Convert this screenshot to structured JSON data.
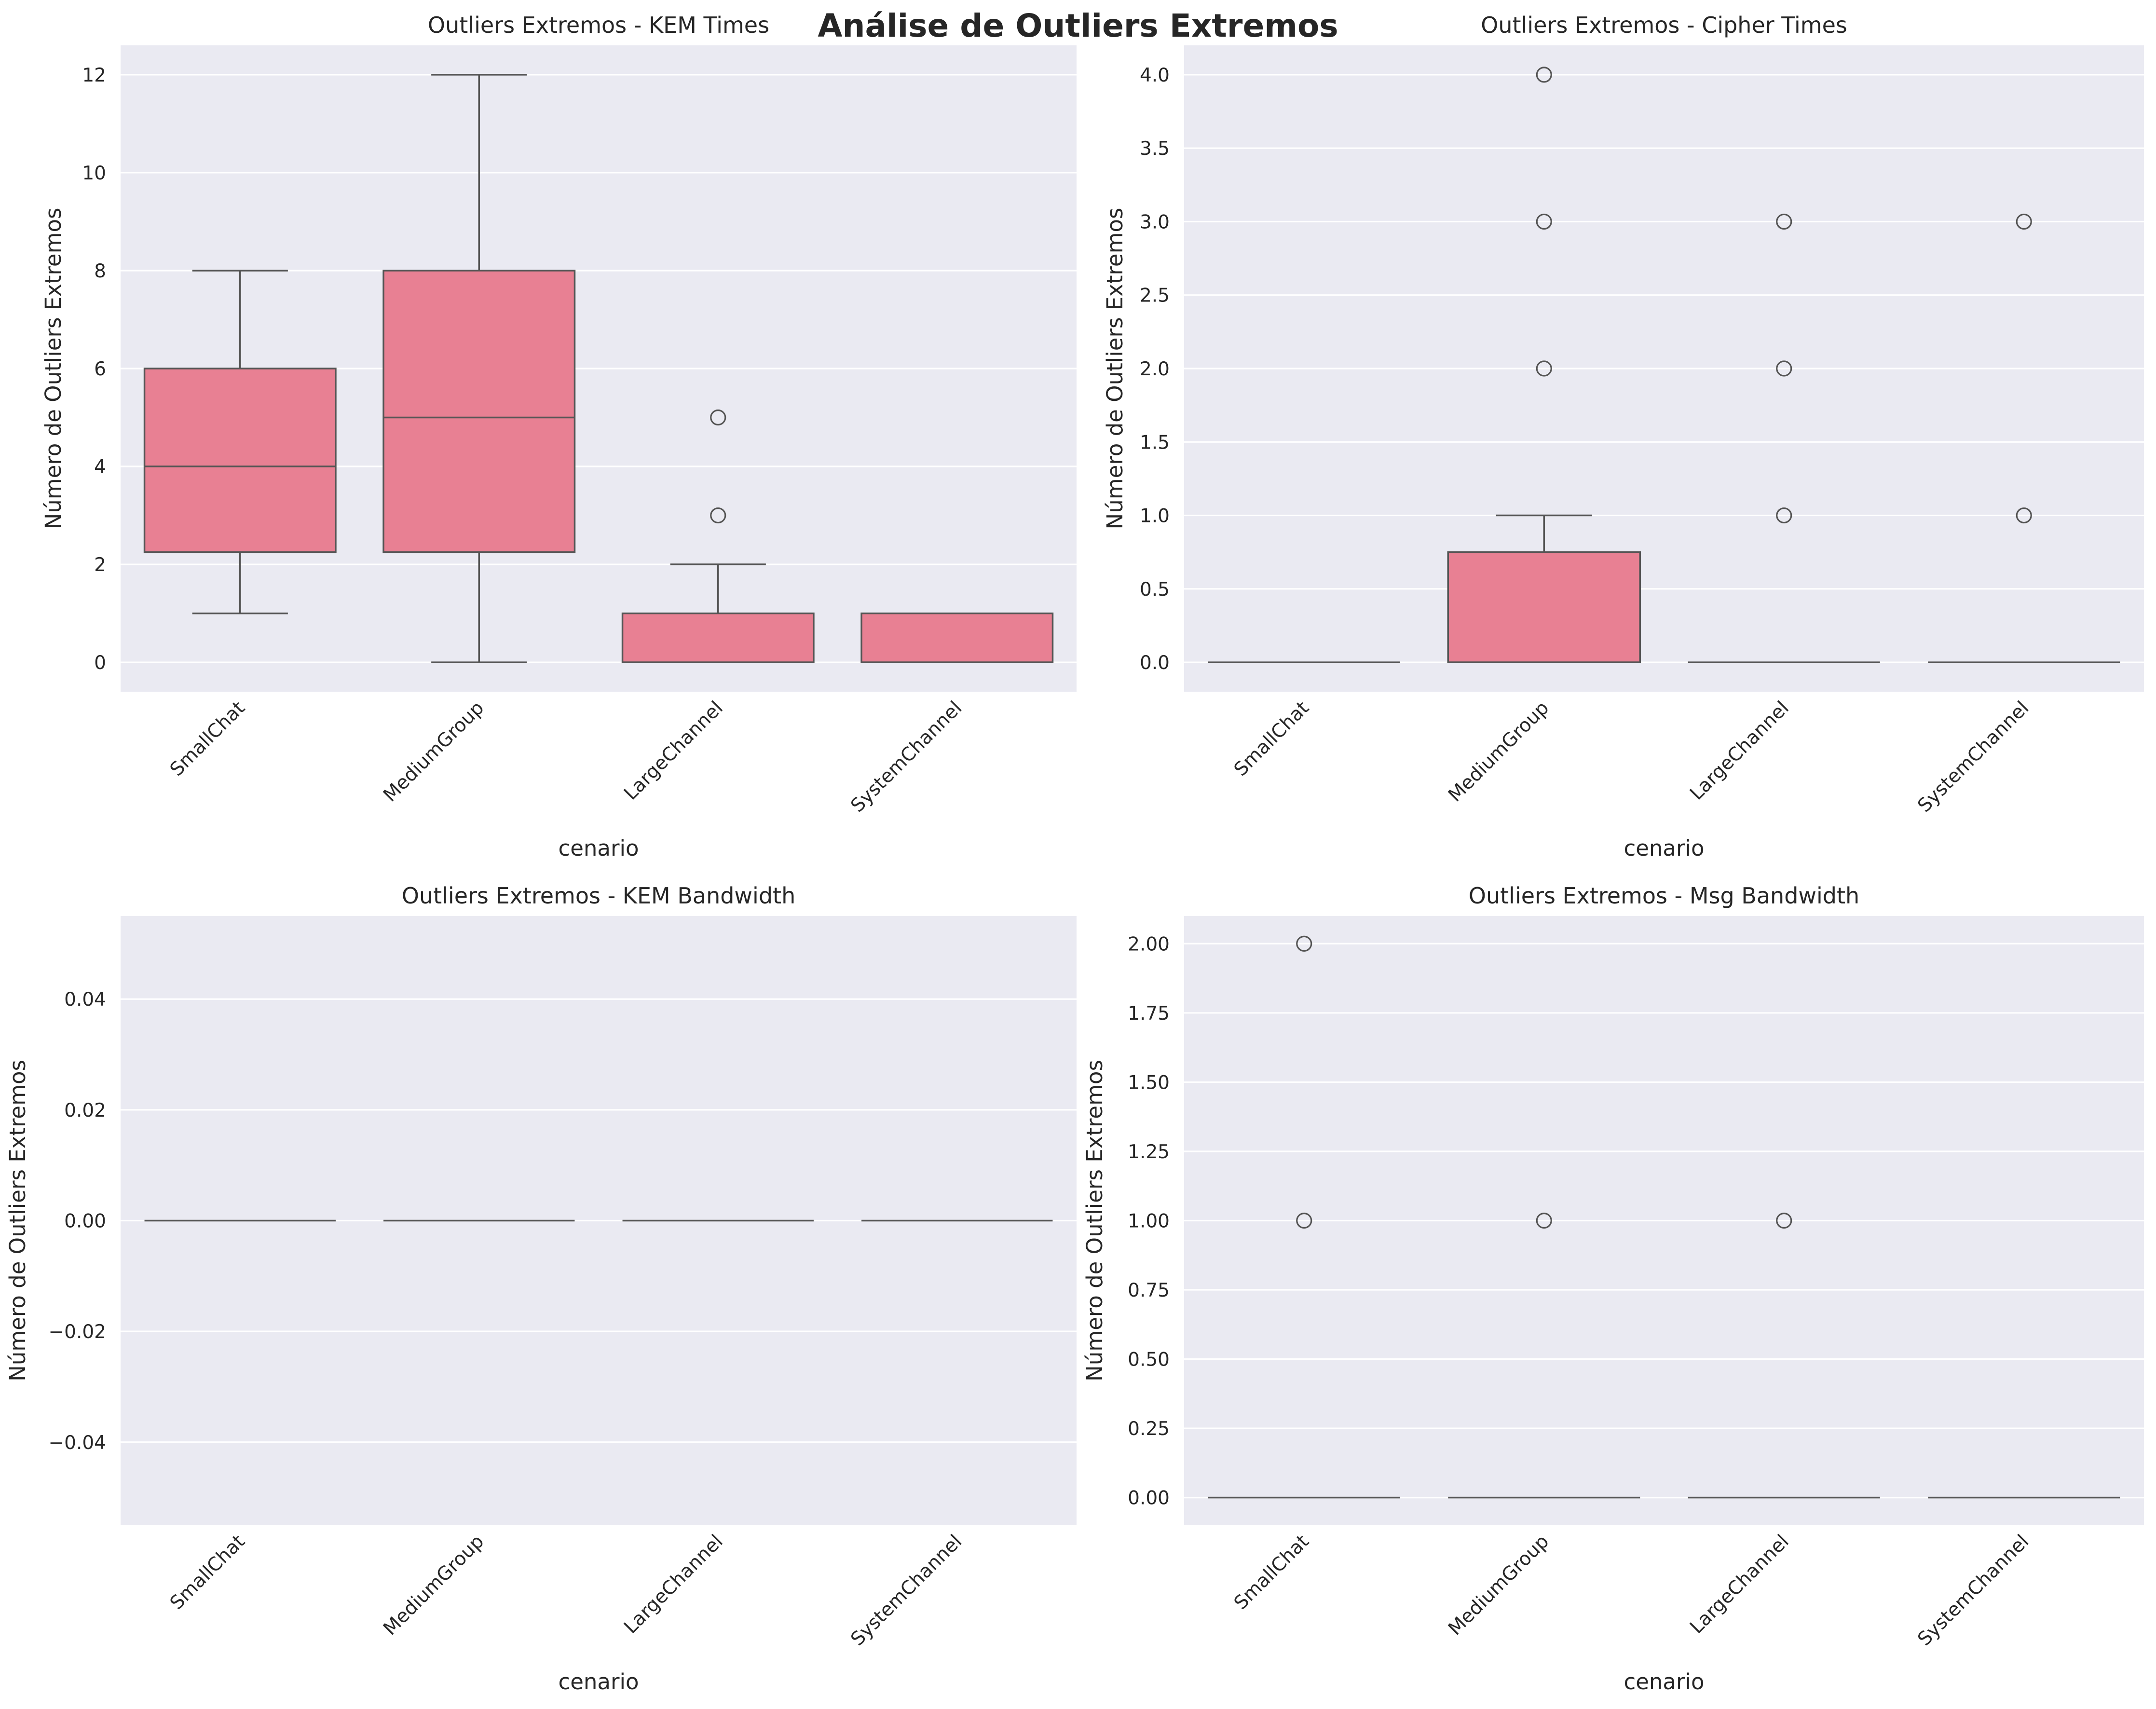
{
  "figure_title": "Análise de Outliers Extremos",
  "colors": {
    "box_fill": "#E88093",
    "box_edge": "#555555",
    "axes_bg": "#EAEAF2",
    "grid": "#FFFFFF",
    "flier_edge": "#555555"
  },
  "chart_data": [
    {
      "type": "box",
      "title": "Outliers Extremos - KEM Times",
      "xlabel": "cenario",
      "ylabel": "Número de Outliers Extremos",
      "categories": [
        "SmallChat",
        "MediumGroup",
        "LargeChannel",
        "SystemChannel"
      ],
      "ylim": [
        -0.6,
        12.6
      ],
      "yticks": [
        0,
        2,
        4,
        6,
        8,
        10,
        12
      ],
      "ytick_labels": [
        "0",
        "2",
        "4",
        "6",
        "8",
        "10",
        "12"
      ],
      "grid": true,
      "boxes": [
        {
          "category": "SmallChat",
          "whislo": 1,
          "q1": 2.25,
          "med": 4,
          "q3": 6,
          "whishi": 8,
          "fliers": []
        },
        {
          "category": "MediumGroup",
          "whislo": 0,
          "q1": 2.25,
          "med": 5,
          "q3": 8,
          "whishi": 12,
          "fliers": []
        },
        {
          "category": "LargeChannel",
          "whislo": 0,
          "q1": 0,
          "med": 0,
          "q3": 1,
          "whishi": 2,
          "fliers": [
            3,
            5
          ]
        },
        {
          "category": "SystemChannel",
          "whislo": 0,
          "q1": 0,
          "med": 0,
          "q3": 1,
          "whishi": 1,
          "fliers": []
        }
      ]
    },
    {
      "type": "box",
      "title": "Outliers Extremos - Cipher Times",
      "xlabel": "cenario",
      "ylabel": "Número de Outliers Extremos",
      "categories": [
        "SmallChat",
        "MediumGroup",
        "LargeChannel",
        "SystemChannel"
      ],
      "ylim": [
        -0.2,
        4.2
      ],
      "yticks": [
        0,
        0.5,
        1,
        1.5,
        2,
        2.5,
        3,
        3.5,
        4
      ],
      "ytick_labels": [
        "0.0",
        "0.5",
        "1.0",
        "1.5",
        "2.0",
        "2.5",
        "3.0",
        "3.5",
        "4.0"
      ],
      "grid": true,
      "boxes": [
        {
          "category": "SmallChat",
          "whislo": 0,
          "q1": 0,
          "med": 0,
          "q3": 0,
          "whishi": 0,
          "fliers": []
        },
        {
          "category": "MediumGroup",
          "whislo": 0,
          "q1": 0,
          "med": 0,
          "q3": 0.75,
          "whishi": 1,
          "fliers": [
            2,
            3,
            4
          ]
        },
        {
          "category": "LargeChannel",
          "whislo": 0,
          "q1": 0,
          "med": 0,
          "q3": 0,
          "whishi": 0,
          "fliers": [
            1,
            2,
            3
          ]
        },
        {
          "category": "SystemChannel",
          "whislo": 0,
          "q1": 0,
          "med": 0,
          "q3": 0,
          "whishi": 0,
          "fliers": [
            1,
            3
          ]
        }
      ]
    },
    {
      "type": "box",
      "title": "Outliers Extremos - KEM Bandwidth",
      "xlabel": "cenario",
      "ylabel": "Número de Outliers Extremos",
      "categories": [
        "SmallChat",
        "MediumGroup",
        "LargeChannel",
        "SystemChannel"
      ],
      "ylim": [
        -0.055,
        0.055
      ],
      "yticks": [
        -0.04,
        -0.02,
        0,
        0.02,
        0.04
      ],
      "ytick_labels": [
        "−0.04",
        "−0.02",
        "0.00",
        "0.02",
        "0.04"
      ],
      "grid": true,
      "boxes": [
        {
          "category": "SmallChat",
          "whislo": 0,
          "q1": 0,
          "med": 0,
          "q3": 0,
          "whishi": 0,
          "fliers": []
        },
        {
          "category": "MediumGroup",
          "whislo": 0,
          "q1": 0,
          "med": 0,
          "q3": 0,
          "whishi": 0,
          "fliers": []
        },
        {
          "category": "LargeChannel",
          "whislo": 0,
          "q1": 0,
          "med": 0,
          "q3": 0,
          "whishi": 0,
          "fliers": []
        },
        {
          "category": "SystemChannel",
          "whislo": 0,
          "q1": 0,
          "med": 0,
          "q3": 0,
          "whishi": 0,
          "fliers": []
        }
      ]
    },
    {
      "type": "box",
      "title": "Outliers Extremos - Msg Bandwidth",
      "xlabel": "cenario",
      "ylabel": "Número de Outliers Extremos",
      "categories": [
        "SmallChat",
        "MediumGroup",
        "LargeChannel",
        "SystemChannel"
      ],
      "ylim": [
        -0.1,
        2.1
      ],
      "yticks": [
        0,
        0.25,
        0.5,
        0.75,
        1,
        1.25,
        1.5,
        1.75,
        2
      ],
      "ytick_labels": [
        "0.00",
        "0.25",
        "0.50",
        "0.75",
        "1.00",
        "1.25",
        "1.50",
        "1.75",
        "2.00"
      ],
      "grid": true,
      "boxes": [
        {
          "category": "SmallChat",
          "whislo": 0,
          "q1": 0,
          "med": 0,
          "q3": 0,
          "whishi": 0,
          "fliers": [
            1,
            2
          ]
        },
        {
          "category": "MediumGroup",
          "whislo": 0,
          "q1": 0,
          "med": 0,
          "q3": 0,
          "whishi": 0,
          "fliers": [
            1
          ]
        },
        {
          "category": "LargeChannel",
          "whislo": 0,
          "q1": 0,
          "med": 0,
          "q3": 0,
          "whishi": 0,
          "fliers": [
            1
          ]
        },
        {
          "category": "SystemChannel",
          "whislo": 0,
          "q1": 0,
          "med": 0,
          "q3": 0,
          "whishi": 0,
          "fliers": []
        }
      ]
    }
  ]
}
